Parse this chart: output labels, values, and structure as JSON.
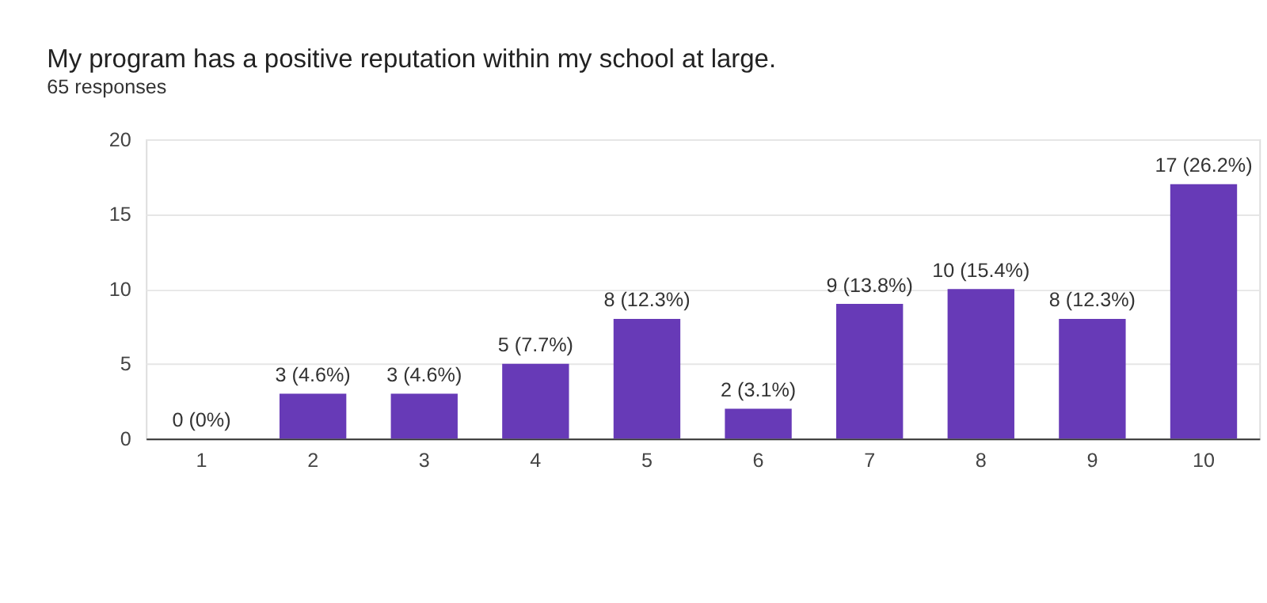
{
  "chart_data": {
    "type": "bar",
    "title": "My program has a positive reputation within my school at large.",
    "subtitle": "65 responses",
    "categories": [
      "1",
      "2",
      "3",
      "4",
      "5",
      "6",
      "7",
      "8",
      "9",
      "10"
    ],
    "values": [
      0,
      3,
      3,
      5,
      8,
      2,
      9,
      10,
      8,
      17
    ],
    "value_labels": [
      "0 (0%)",
      "3 (4.6%)",
      "3 (4.6%)",
      "5 (7.7%)",
      "8 (12.3%)",
      "2 (3.1%)",
      "9 (13.8%)",
      "10 (15.4%)",
      "8 (12.3%)",
      "17 (26.2%)"
    ],
    "color": "#673ab7",
    "ylim": [
      0,
      20
    ],
    "yticks": [
      0,
      5,
      10,
      15,
      20
    ],
    "grid": "y"
  }
}
